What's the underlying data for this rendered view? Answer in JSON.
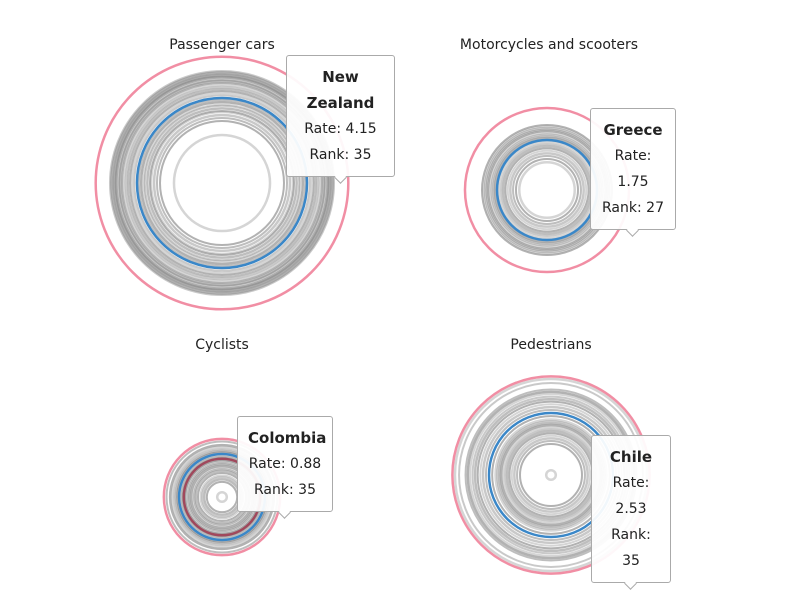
{
  "chart_data": [
    {
      "type": "concentric-circles",
      "title": "Passenger cars",
      "highlight": {
        "country": "New Zealand",
        "rate": 4.15,
        "rank": 35,
        "rate_label": "Rate: 4.15",
        "rank_label": "Rank: 35"
      },
      "reference_rate": 1.88,
      "values": [
        0.6,
        1.0,
        1.1,
        1.2,
        1.3,
        1.35,
        1.45,
        1.55,
        1.6,
        1.7,
        1.8,
        2.0,
        2.1,
        2.2,
        2.3,
        2.4,
        2.5,
        2.6,
        2.7,
        2.75,
        2.8,
        2.9,
        2.95,
        3.0,
        3.05,
        3.1,
        3.2,
        3.25
      ]
    },
    {
      "type": "concentric-circles",
      "title": "Motorcycles and scooters",
      "highlight": {
        "country": "Greece",
        "rate": 1.75,
        "rank": 27,
        "rate_label": "Rate: 1.75",
        "rank_label": "Rank: 27"
      },
      "reference_rate": 0.65,
      "values": [
        0.2,
        0.25,
        0.3,
        0.35,
        0.4,
        0.45,
        0.5,
        0.55,
        0.6,
        0.7,
        0.75,
        0.8,
        0.85,
        0.9,
        0.95,
        1.0,
        1.05,
        1.1
      ]
    },
    {
      "type": "concentric-circles",
      "title": "Cyclists",
      "highlight": {
        "country": "Colombia",
        "rate": 0.88,
        "rank": 35,
        "rate_label": "Rate: 0.88",
        "rank_label": "Rank: 35"
      },
      "reference_rate": 0.48,
      "secondary_rate": 0.38,
      "values": [
        0.006,
        0.06,
        0.08,
        0.1,
        0.12,
        0.15,
        0.18,
        0.2,
        0.22,
        0.25,
        0.28,
        0.3,
        0.33,
        0.35,
        0.4,
        0.42,
        0.45,
        0.52,
        0.55,
        0.6,
        0.65,
        0.7,
        0.8
      ]
    },
    {
      "type": "concentric-circles",
      "title": "Pedestrians",
      "highlight": {
        "country": "Chile",
        "rate": 2.53,
        "rank": 35,
        "rate_label": "Rate: 2.53",
        "rank_label": "Rank: 35"
      },
      "reference_rate": 1.0,
      "values": [
        0.006,
        0.25,
        0.3,
        0.35,
        0.4,
        0.45,
        0.5,
        0.55,
        0.6,
        0.65,
        0.7,
        0.75,
        0.8,
        0.9,
        1.1,
        1.2,
        1.3,
        1.4,
        1.5,
        1.6,
        1.7,
        1.8,
        1.9,
        2.2,
        2.4
      ]
    }
  ],
  "colors": {
    "highlight": "#f0829a",
    "reference": "#3a87c8",
    "secondary": "#a0485c",
    "others": "#888888"
  }
}
